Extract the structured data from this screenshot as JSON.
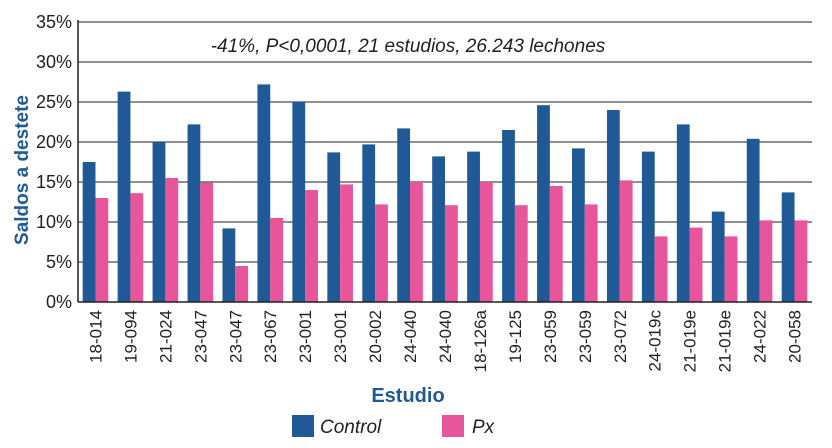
{
  "chart_data": {
    "type": "bar",
    "title": "",
    "annotation": "-41%, P<0,0001, 21 estudios, 26.243 lechones",
    "xlabel": "Estudio",
    "ylabel": "Saldos a destete",
    "ylim": [
      0,
      35
    ],
    "yticks": [
      "0%",
      "5%",
      "10%",
      "15%",
      "20%",
      "25%",
      "30%",
      "35%"
    ],
    "grid": "horizontal",
    "legend_position": "bottom",
    "categories": [
      "18-014",
      "19-094",
      "21-024",
      "23-047",
      "23-047",
      "23-067",
      "23-001",
      "23-001",
      "20-002",
      "24-040",
      "24-040",
      "18-126a",
      "19-125",
      "23-059",
      "23-059",
      "23-072",
      "24-019c",
      "21-019e",
      "21-019e",
      "24-022",
      "20-058"
    ],
    "series": [
      {
        "name": "Control",
        "color": "#1f5a96",
        "values": [
          17.5,
          26.3,
          20.0,
          22.2,
          9.2,
          27.2,
          25.0,
          18.7,
          19.7,
          21.7,
          18.2,
          18.8,
          21.5,
          24.6,
          19.2,
          24.0,
          18.8,
          22.2,
          11.3,
          20.4,
          13.7
        ]
      },
      {
        "name": "Px",
        "color": "#e8559b",
        "values": [
          13.0,
          13.6,
          15.5,
          14.9,
          4.5,
          10.5,
          14.0,
          14.7,
          12.2,
          15.0,
          12.1,
          15.0,
          12.1,
          14.5,
          12.2,
          15.2,
          8.2,
          9.3,
          8.2,
          10.2,
          10.2
        ]
      }
    ]
  }
}
